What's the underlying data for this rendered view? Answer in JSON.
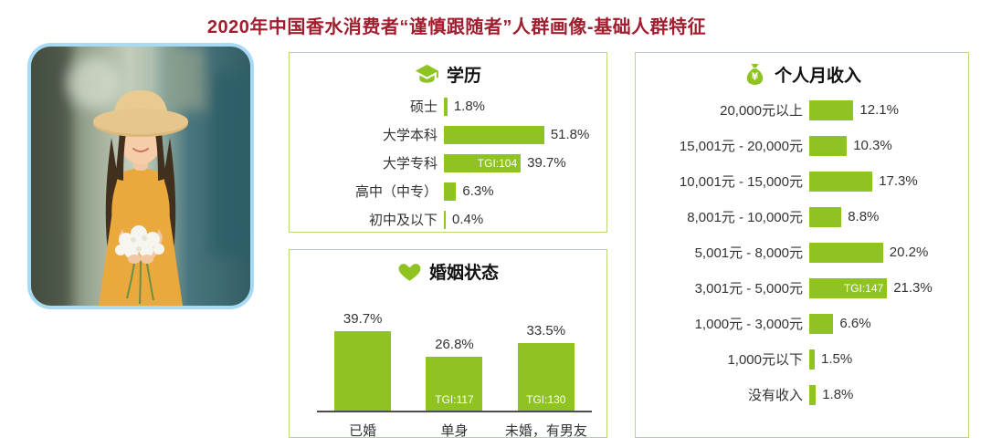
{
  "title": "2020年中国香水消费者“谨慎跟随者”人群画像-基础人群特征",
  "colors": {
    "title_red": "#a01e2e",
    "bar_green": "#8ec321",
    "panel_border_green": "#b9d87a",
    "photo_border_blue": "#a9daf3",
    "tgi_text": "#ffffff"
  },
  "icons": {
    "education": "graduation-cap-icon",
    "marital": "heart-icon",
    "income": "money-bag-icon"
  },
  "chart_data": [
    {
      "type": "bar",
      "orientation": "horizontal",
      "title": "学历",
      "categories": [
        "硕士",
        "大学本科",
        "大学专科",
        "高中（中专）",
        "初中及以下"
      ],
      "values": [
        1.8,
        51.8,
        39.7,
        6.3,
        0.4
      ],
      "value_labels": [
        "1.8%",
        "51.8%",
        "39.7%",
        "6.3%",
        "0.4%"
      ],
      "tgi": [
        null,
        null,
        "TGI:104",
        null,
        null
      ],
      "unit": "%",
      "xlim": [
        0,
        55
      ],
      "grid": false,
      "legend": false
    },
    {
      "type": "bar",
      "orientation": "vertical",
      "title": "婚姻状态",
      "categories": [
        "已婚",
        "单身",
        "未婚，有男友"
      ],
      "values": [
        39.7,
        26.8,
        33.5
      ],
      "value_labels": [
        "39.7%",
        "26.8%",
        "33.5%"
      ],
      "tgi": [
        null,
        "TGI:117",
        "TGI:130"
      ],
      "unit": "%",
      "ylim": [
        0,
        45
      ],
      "grid": false,
      "legend": false
    },
    {
      "type": "bar",
      "orientation": "horizontal",
      "title": "个人月收入",
      "categories": [
        "20,000元以上",
        "15,001元 - 20,000元",
        "10,001元 - 15,000元",
        "8,001元 - 10,000元",
        "5,001元 - 8,000元",
        "3,001元 - 5,000元",
        "1,000元 - 3,000元",
        "1,000元以下",
        "没有收入"
      ],
      "values": [
        12.1,
        10.3,
        17.3,
        8.8,
        20.2,
        21.3,
        6.6,
        1.5,
        1.8
      ],
      "value_labels": [
        "12.1%",
        "10.3%",
        "17.3%",
        "8.8%",
        "20.2%",
        "21.3%",
        "6.6%",
        "1.5%",
        "1.8%"
      ],
      "tgi": [
        null,
        null,
        null,
        null,
        null,
        "TGI:147",
        null,
        null,
        null
      ],
      "unit": "%",
      "xlim": [
        0,
        25
      ],
      "grid": false,
      "legend": false
    }
  ]
}
